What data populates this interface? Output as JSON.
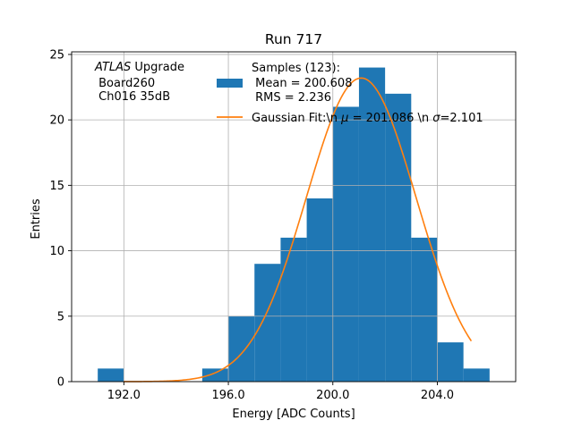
{
  "chart_data": {
    "type": "bar",
    "title": "Run 717",
    "xlabel": "Energy [ADC Counts]",
    "ylabel": "Entries",
    "xlim": [
      190.0,
      207.0
    ],
    "ylim": [
      0,
      25.2
    ],
    "grid": true,
    "bins": [
      {
        "x0": 191,
        "x1": 192,
        "value": 1
      },
      {
        "x0": 192,
        "x1": 193,
        "value": 0
      },
      {
        "x0": 193,
        "x1": 194,
        "value": 0
      },
      {
        "x0": 194,
        "x1": 195,
        "value": 0
      },
      {
        "x0": 195,
        "x1": 196,
        "value": 1
      },
      {
        "x0": 196,
        "x1": 197,
        "value": 5
      },
      {
        "x0": 197,
        "x1": 198,
        "value": 9
      },
      {
        "x0": 198,
        "x1": 199,
        "value": 11
      },
      {
        "x0": 199,
        "x1": 200,
        "value": 14
      },
      {
        "x0": 200,
        "x1": 201,
        "value": 21
      },
      {
        "x0": 201,
        "x1": 202,
        "value": 24
      },
      {
        "x0": 202,
        "x1": 203,
        "value": 22
      },
      {
        "x0": 203,
        "x1": 204,
        "value": 11
      },
      {
        "x0": 204,
        "x1": 205,
        "value": 3
      },
      {
        "x0": 205,
        "x1": 206,
        "value": 1
      }
    ],
    "x_ticks": [
      192.0,
      196.0,
      200.0,
      204.0
    ],
    "x_tick_labels": [
      "192.0",
      "196.0",
      "200.0",
      "204.0"
    ],
    "y_ticks": [
      0,
      5,
      10,
      15,
      20,
      25
    ],
    "y_tick_labels": [
      "0",
      "5",
      "10",
      "15",
      "20",
      "25"
    ],
    "fit": {
      "mu": 201.086,
      "sigma": 2.101,
      "amplitude": 23.2,
      "x_range": [
        192.0,
        205.3
      ]
    },
    "annotation": {
      "italic_part": "ATLAS",
      "rest_line1": " Upgrade",
      "line2": " Board260",
      "line3": " Ch016 35dB"
    },
    "legend": {
      "location": "upper right",
      "samples_line1": "Samples (123):",
      "samples_line2": " Mean = 200.608",
      "samples_line3": " RMS = 2.236",
      "fit_prefix": "Gaussian Fit:\\n ",
      "fit_mu_symbol": "μ",
      "fit_middle": " = 201.086 \\n ",
      "fit_sigma_symbol": "σ",
      "fit_suffix": "=2.101"
    },
    "colors": {
      "bars": "#1f77b4",
      "fit": "#ff7f0e",
      "grid": "#b0b0b0"
    }
  }
}
